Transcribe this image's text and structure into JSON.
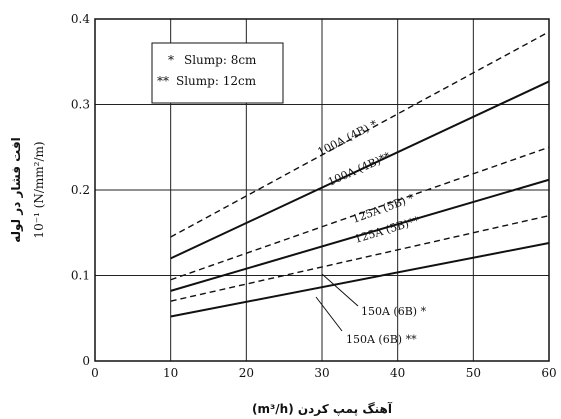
{
  "chart_data": {
    "type": "line",
    "xlabel": "آهنگ پمپ کردن (m³/h)",
    "ylabel_fa": "افت فشار در لوله",
    "ylabel_unit": "10⁻¹ (N/mm²/m)",
    "xlim": [
      0,
      60
    ],
    "ylim": [
      0,
      0.4
    ],
    "x_ticks": [
      "0",
      "10",
      "20",
      "30",
      "40",
      "50",
      "60"
    ],
    "y_ticks": [
      "0",
      "0.1",
      "0.2",
      "0.3",
      "0.4"
    ],
    "grid": true,
    "legend": {
      "position": "top-left",
      "entries": [
        {
          "marker": "*",
          "text": "Slump: 8cm"
        },
        {
          "marker": "**",
          "text": "Slump: 12cm"
        }
      ]
    },
    "series": [
      {
        "name": "100A (4B) *",
        "style": "dashed",
        "x": [
          10,
          60
        ],
        "y": [
          0.145,
          0.385
        ]
      },
      {
        "name": "100A (4B)**",
        "style": "solid",
        "x": [
          10,
          60
        ],
        "y": [
          0.12,
          0.327
        ]
      },
      {
        "name": "125A (5B) *",
        "style": "dashed",
        "x": [
          10,
          60
        ],
        "y": [
          0.095,
          0.25
        ]
      },
      {
        "name": "125A (5B)**",
        "style": "solid",
        "x": [
          10,
          60
        ],
        "y": [
          0.082,
          0.212
        ]
      },
      {
        "name": "",
        "style": "dashed",
        "x": [
          10,
          60
        ],
        "y": [
          0.07,
          0.17
        ]
      },
      {
        "name": "",
        "style": "solid",
        "x": [
          10,
          60
        ],
        "y": [
          0.052,
          0.138
        ]
      }
    ],
    "annotations": [
      {
        "text": "150A (6B) *",
        "points_to_series": 4
      },
      {
        "text": "150A (6B) **",
        "points_to_series": 5
      }
    ]
  }
}
